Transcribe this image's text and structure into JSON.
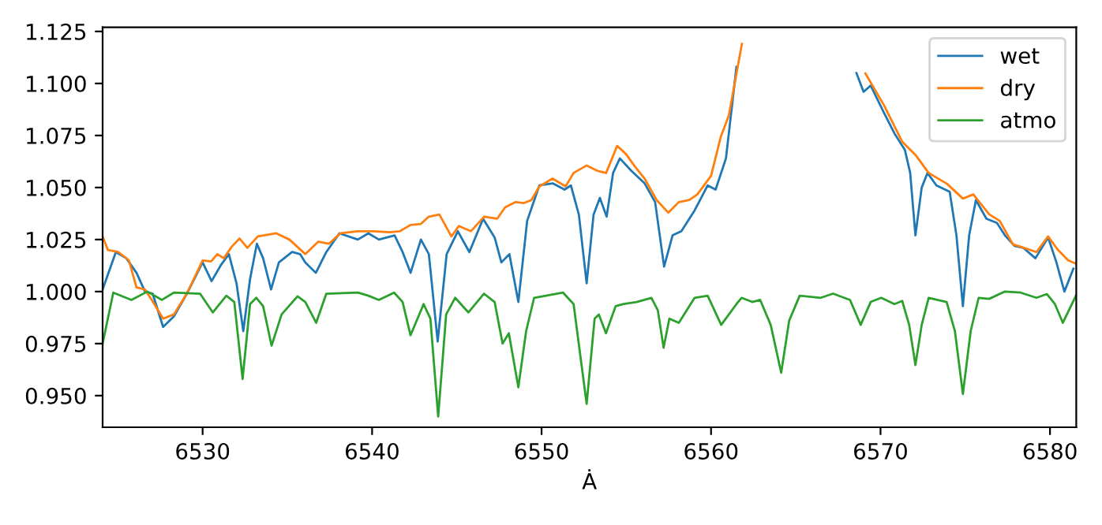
{
  "chart_data": {
    "type": "line",
    "xlabel": "Ȧ",
    "xlim": [
      6524.1,
      6581.55
    ],
    "ylim": [
      0.9348,
      1.127
    ],
    "xticks": [
      6530,
      6540,
      6550,
      6560,
      6570,
      6580
    ],
    "yticks": [
      {
        "value": 0.95,
        "label": "0.950"
      },
      {
        "value": 0.975,
        "label": "0.975"
      },
      {
        "value": 1.0,
        "label": "1.000"
      },
      {
        "value": 1.025,
        "label": "1.025"
      },
      {
        "value": 1.05,
        "label": "1.050"
      },
      {
        "value": 1.075,
        "label": "1.075"
      },
      {
        "value": 1.1,
        "label": "1.100"
      },
      {
        "value": 1.125,
        "label": "1.125"
      }
    ],
    "grid": false,
    "legend": "top right",
    "marker": "none",
    "line_style": "solid",
    "series": [
      {
        "name": "wet",
        "color": "#1f77b4",
        "x": [
          6524.1,
          6524.88,
          6525.5,
          6526.1,
          6526.6,
          6527.05,
          6527.67,
          6528.3,
          6529.07,
          6530.0,
          6530.53,
          6531.1,
          6531.55,
          6532.0,
          6532.4,
          6532.8,
          6533.2,
          6533.57,
          6534.04,
          6534.5,
          6535.28,
          6535.75,
          6536.06,
          6536.68,
          6537.3,
          6538.07,
          6539.16,
          6539.78,
          6540.4,
          6541.33,
          6541.8,
          6542.27,
          6542.88,
          6543.35,
          6543.87,
          6544.4,
          6545.06,
          6545.74,
          6546.55,
          6547.23,
          6547.63,
          6548.1,
          6548.63,
          6549.15,
          6549.87,
          6550.65,
          6551.36,
          6551.73,
          6552.2,
          6552.66,
          6553.07,
          6553.44,
          6553.84,
          6554.22,
          6554.62,
          6555.3,
          6556.08,
          6556.7,
          6557.23,
          6557.73,
          6558.25,
          6559.03,
          6559.8,
          6560.27,
          6560.88,
          6561.5,
          6561.9,
          6565.0,
          6568.0,
          6568.58,
          6569.0,
          6569.42,
          6570.2,
          6570.82,
          6571.44,
          6571.75,
          6572.06,
          6572.43,
          6572.77,
          6573.3,
          6574.08,
          6574.48,
          6574.86,
          6575.23,
          6575.63,
          6576.25,
          6576.87,
          6577.34,
          6577.9,
          6578.43,
          6579.14,
          6579.89,
          6580.38,
          6580.85,
          6581.38
        ],
        "values": [
          1.001,
          1.019,
          1.016,
          1.009,
          1.0,
          0.999,
          0.983,
          0.988,
          0.999,
          1.014,
          1.005,
          1.013,
          1.018,
          1.004,
          0.981,
          1.006,
          1.023,
          1.016,
          1.001,
          1.014,
          1.019,
          1.018,
          1.014,
          1.009,
          1.019,
          1.028,
          1.025,
          1.028,
          1.025,
          1.027,
          1.019,
          1.009,
          1.025,
          1.018,
          0.976,
          1.018,
          1.029,
          1.019,
          1.035,
          1.026,
          1.014,
          1.018,
          0.995,
          1.034,
          1.051,
          1.052,
          1.049,
          1.051,
          1.037,
          1.004,
          1.037,
          1.045,
          1.036,
          1.057,
          1.064,
          1.058,
          1.052,
          1.043,
          1.012,
          1.027,
          1.029,
          1.039,
          1.051,
          1.049,
          1.064,
          1.108,
          null,
          null,
          null,
          1.105,
          1.096,
          1.099,
          1.086,
          1.076,
          1.068,
          1.057,
          1.027,
          1.05,
          1.057,
          1.051,
          1.048,
          1.027,
          0.993,
          1.027,
          1.044,
          1.035,
          1.033,
          1.027,
          1.022,
          1.021,
          1.016,
          1.026,
          1.014,
          1.0,
          1.011
        ]
      },
      {
        "name": "dry",
        "color": "#ff7f0e",
        "x": [
          6524.1,
          6524.41,
          6525.03,
          6525.65,
          6526.1,
          6526.6,
          6527.0,
          6527.67,
          6528.3,
          6529.07,
          6530.0,
          6530.5,
          6530.87,
          6531.25,
          6531.71,
          6532.18,
          6532.64,
          6533.26,
          6534.35,
          6535.12,
          6536.06,
          6536.83,
          6537.45,
          6538.13,
          6539.16,
          6540.09,
          6541.02,
          6541.64,
          6542.27,
          6542.88,
          6543.35,
          6543.97,
          6544.68,
          6545.12,
          6545.83,
          6546.61,
          6547.38,
          6547.85,
          6548.47,
          6548.94,
          6549.4,
          6549.87,
          6550.65,
          6551.42,
          6551.89,
          6552.66,
          6553.3,
          6553.81,
          6554.46,
          6554.99,
          6555.46,
          6556.08,
          6556.79,
          6557.48,
          6558.1,
          6558.72,
          6559.19,
          6560.0,
          6560.58,
          6561.05,
          6561.82,
          6562.03,
          6565.0,
          6568.33,
          6569.11,
          6570.2,
          6571.28,
          6572.06,
          6572.84,
          6573.92,
          6574.86,
          6575.48,
          6576.41,
          6577.03,
          6577.81,
          6578.28,
          6579.2,
          6579.89,
          6580.45,
          6581.07,
          6581.53
        ],
        "values": [
          1.0265,
          1.02,
          1.019,
          1.015,
          1.002,
          1.001,
          0.996,
          0.987,
          0.989,
          0.999,
          1.015,
          1.0145,
          1.018,
          1.016,
          1.0215,
          1.0255,
          1.021,
          1.0265,
          1.028,
          1.025,
          1.018,
          1.024,
          1.023,
          1.028,
          1.029,
          1.029,
          1.0285,
          1.029,
          1.032,
          1.0325,
          1.036,
          1.037,
          1.0265,
          1.0315,
          1.029,
          1.036,
          1.035,
          1.0405,
          1.043,
          1.0425,
          1.044,
          1.0505,
          1.0543,
          1.0505,
          1.057,
          1.0606,
          1.058,
          1.057,
          1.07,
          1.066,
          1.0606,
          1.0543,
          1.044,
          1.0379,
          1.043,
          1.044,
          1.0467,
          1.0556,
          1.0745,
          1.0846,
          1.119,
          null,
          null,
          null,
          1.1048,
          1.0896,
          1.072,
          1.0657,
          1.057,
          1.0518,
          1.0447,
          1.0467,
          1.0371,
          1.034,
          1.0227,
          1.0215,
          1.019,
          1.0265,
          1.0202,
          1.015,
          1.0134
        ]
      },
      {
        "name": "atmo",
        "color": "#2ca02c",
        "x": [
          6524.1,
          6524.73,
          6525.8,
          6526.74,
          6527.6,
          6528.3,
          6529.85,
          6530.6,
          6531.4,
          6531.87,
          6532.36,
          6532.8,
          6533.17,
          6533.57,
          6534.07,
          6534.66,
          6535.6,
          6536.06,
          6536.7,
          6537.3,
          6539.16,
          6539.78,
          6540.4,
          6541.3,
          6541.8,
          6542.27,
          6543.04,
          6543.44,
          6543.9,
          6544.37,
          6544.9,
          6545.68,
          6546.6,
          6547.23,
          6547.7,
          6548.07,
          6548.63,
          6549.09,
          6549.56,
          6551.27,
          6551.89,
          6552.66,
          6553.13,
          6553.38,
          6553.8,
          6554.37,
          6554.84,
          6555.61,
          6556.48,
          6556.86,
          6557.2,
          6557.54,
          6558.1,
          6559.03,
          6559.8,
          6560.6,
          6561.5,
          6561.8,
          6562.43,
          6562.9,
          6563.52,
          6564.14,
          6564.61,
          6565.23,
          6566.47,
          6567.2,
          6568.2,
          6568.83,
          6569.42,
          6570.04,
          6570.82,
          6571.28,
          6571.69,
          6572.06,
          6572.43,
          6572.84,
          6573.9,
          6574.39,
          6574.86,
          6575.32,
          6575.79,
          6576.41,
          6577.34,
          6578.27,
          6579.2,
          6579.82,
          6580.29,
          6580.76,
          6581.53
        ],
        "values": [
          0.975,
          0.9995,
          0.996,
          1.0,
          0.996,
          0.9995,
          0.999,
          0.99,
          0.998,
          0.995,
          0.958,
          0.994,
          0.997,
          0.993,
          0.974,
          0.989,
          0.9977,
          0.995,
          0.985,
          0.999,
          0.9995,
          0.998,
          0.996,
          0.9995,
          0.995,
          0.979,
          0.994,
          0.987,
          0.94,
          0.989,
          0.997,
          0.99,
          0.999,
          0.995,
          0.975,
          0.98,
          0.954,
          0.981,
          0.997,
          0.9995,
          0.994,
          0.946,
          0.987,
          0.989,
          0.98,
          0.993,
          0.994,
          0.995,
          0.997,
          0.991,
          0.973,
          0.987,
          0.985,
          0.997,
          0.998,
          0.984,
          0.994,
          0.997,
          0.995,
          0.996,
          0.984,
          0.961,
          0.986,
          0.998,
          0.997,
          0.999,
          0.996,
          0.984,
          0.995,
          0.997,
          0.994,
          0.9955,
          0.984,
          0.9647,
          0.984,
          0.997,
          0.995,
          0.981,
          0.9508,
          0.981,
          0.997,
          0.9965,
          1.0,
          0.9995,
          0.997,
          0.9988,
          0.994,
          0.985,
          0.998
        ]
      }
    ]
  }
}
